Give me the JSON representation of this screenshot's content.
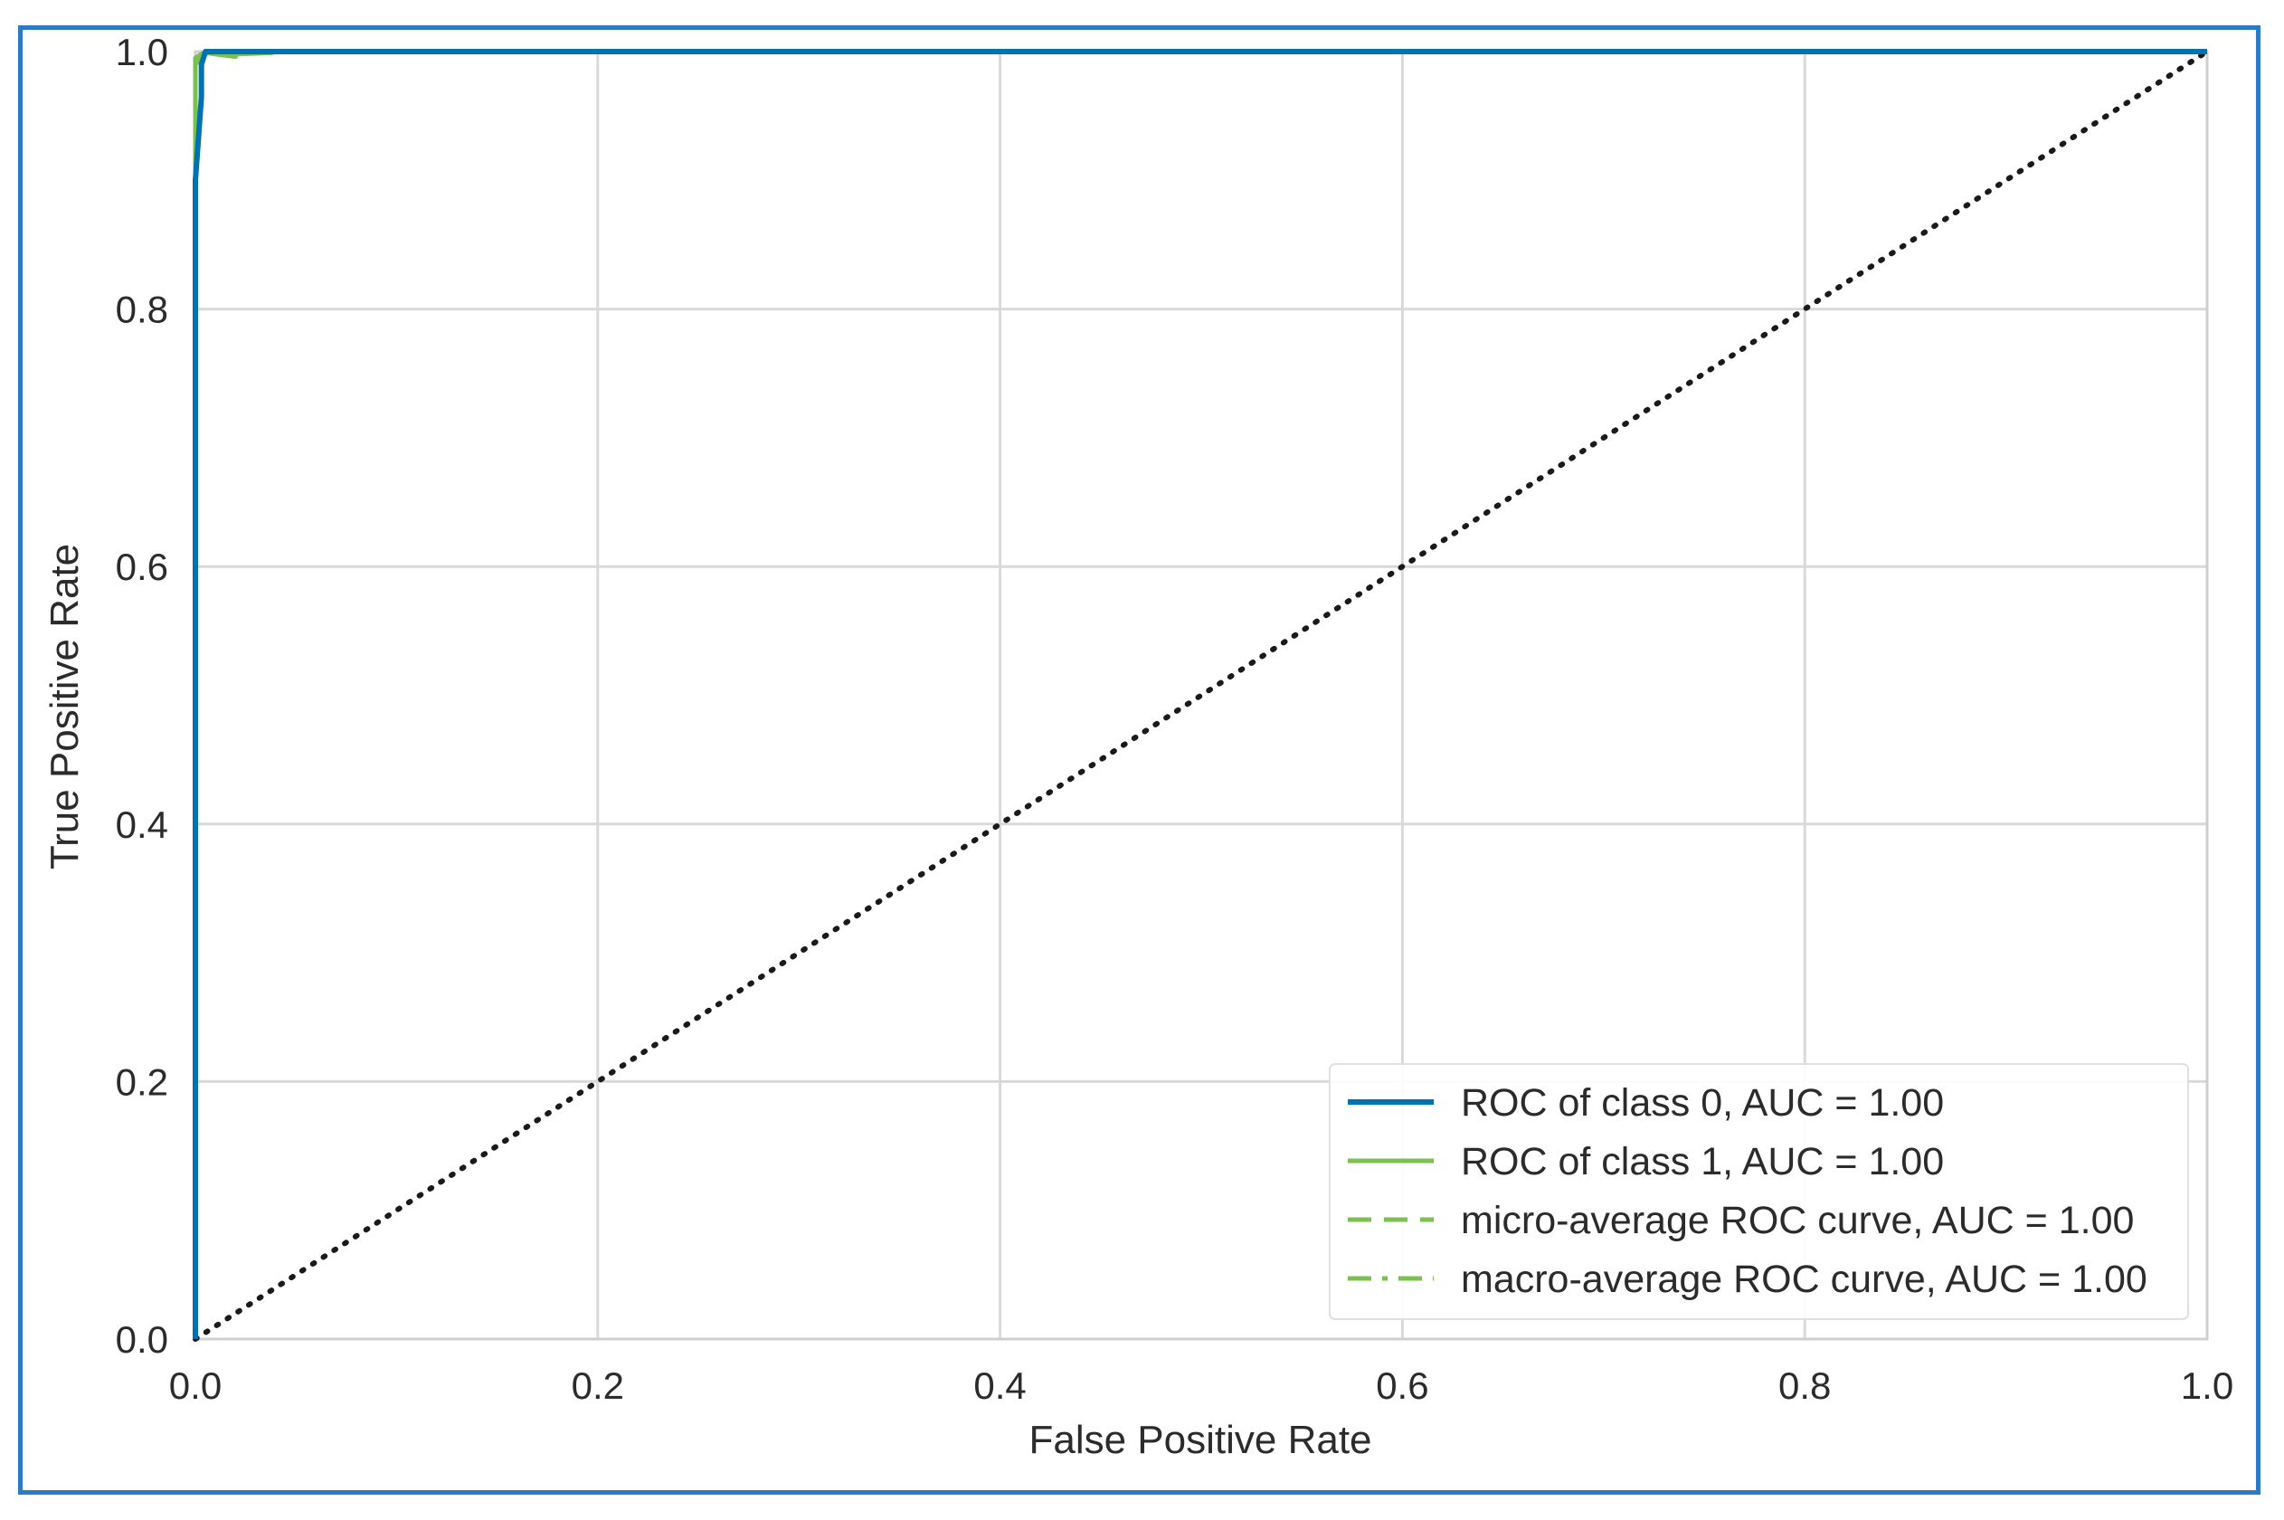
{
  "chart_data": {
    "type": "line",
    "xlabel": "False Positive Rate",
    "ylabel": "True Positive Rate",
    "xlim": [
      0.0,
      1.0
    ],
    "ylim": [
      0.0,
      1.0
    ],
    "x_ticks": [
      "0.0",
      "0.2",
      "0.4",
      "0.6",
      "0.8",
      "1.0"
    ],
    "y_ticks": [
      "0.0",
      "0.2",
      "0.4",
      "0.6",
      "0.8",
      "1.0"
    ],
    "grid": true,
    "legend_position": "bottom-right",
    "colors": {
      "class0": "#0072b2",
      "class1": "#7ac152",
      "micro": "#7ac152",
      "macro": "#7ac152",
      "diagonal": "#1a1a1a",
      "grid": "#d9d9d9",
      "frame": "#2e78c8"
    },
    "series": [
      {
        "name": "ROC of class 0, AUC = 1.00",
        "style": "solid",
        "points": [
          [
            0.0,
            0.0
          ],
          [
            0.0,
            0.9
          ],
          [
            0.003,
            0.965
          ],
          [
            0.003,
            0.99
          ],
          [
            0.005,
            1.0
          ],
          [
            1.0,
            1.0
          ]
        ]
      },
      {
        "name": "ROC of class 1, AUC = 1.00",
        "style": "solid",
        "points": [
          [
            0.0,
            0.0
          ],
          [
            0.0,
            0.99
          ],
          [
            0.005,
            0.999
          ],
          [
            0.02,
            0.996
          ],
          [
            0.02,
            0.998
          ],
          [
            0.038,
            0.999
          ],
          [
            0.04,
            1.0
          ],
          [
            1.0,
            1.0
          ]
        ]
      },
      {
        "name": "micro-average ROC curve, AUC = 1.00",
        "style": "dashed",
        "points": [
          [
            0.0,
            0.0
          ],
          [
            0.0,
            0.995
          ],
          [
            0.005,
            1.0
          ],
          [
            1.0,
            1.0
          ]
        ]
      },
      {
        "name": "macro-average ROC curve, AUC = 1.00",
        "style": "dashdot",
        "points": [
          [
            0.0,
            0.0
          ],
          [
            0.0,
            0.995
          ],
          [
            0.006,
            1.0
          ],
          [
            1.0,
            1.0
          ]
        ]
      }
    ],
    "reference_line": {
      "points": [
        [
          0.0,
          0.0
        ],
        [
          1.0,
          1.0
        ]
      ],
      "style": "dotted"
    }
  }
}
